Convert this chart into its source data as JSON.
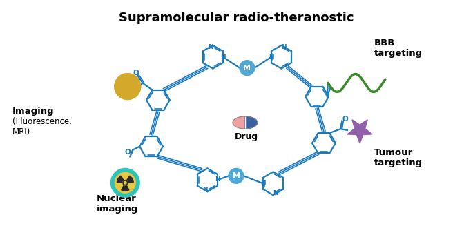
{
  "title": "Supramolecular radio-theranostic",
  "title_fontsize": 13,
  "title_fontweight": "bold",
  "bg_color": "#ffffff",
  "structure_color": "#1a7abf",
  "structure_lw": 1.6,
  "metal_color": "#4fa8d5",
  "metal_label": "M",
  "imaging_label_bold": "Imaging",
  "imaging_label_normal": "(Fluorescence,\nMRI)",
  "nuclear_label": "Nuclear\nimaging",
  "bbb_label": "BBB\ntargeting",
  "tumour_label": "Tumour\ntargeting",
  "drug_label": "Drug",
  "gold_color": "#d4a82a",
  "nuclear_outer_color": "#2ec4b6",
  "nuclear_inner_color": "#e8c840",
  "star_color": "#9060a8",
  "helix_color": "#3a8a2a"
}
